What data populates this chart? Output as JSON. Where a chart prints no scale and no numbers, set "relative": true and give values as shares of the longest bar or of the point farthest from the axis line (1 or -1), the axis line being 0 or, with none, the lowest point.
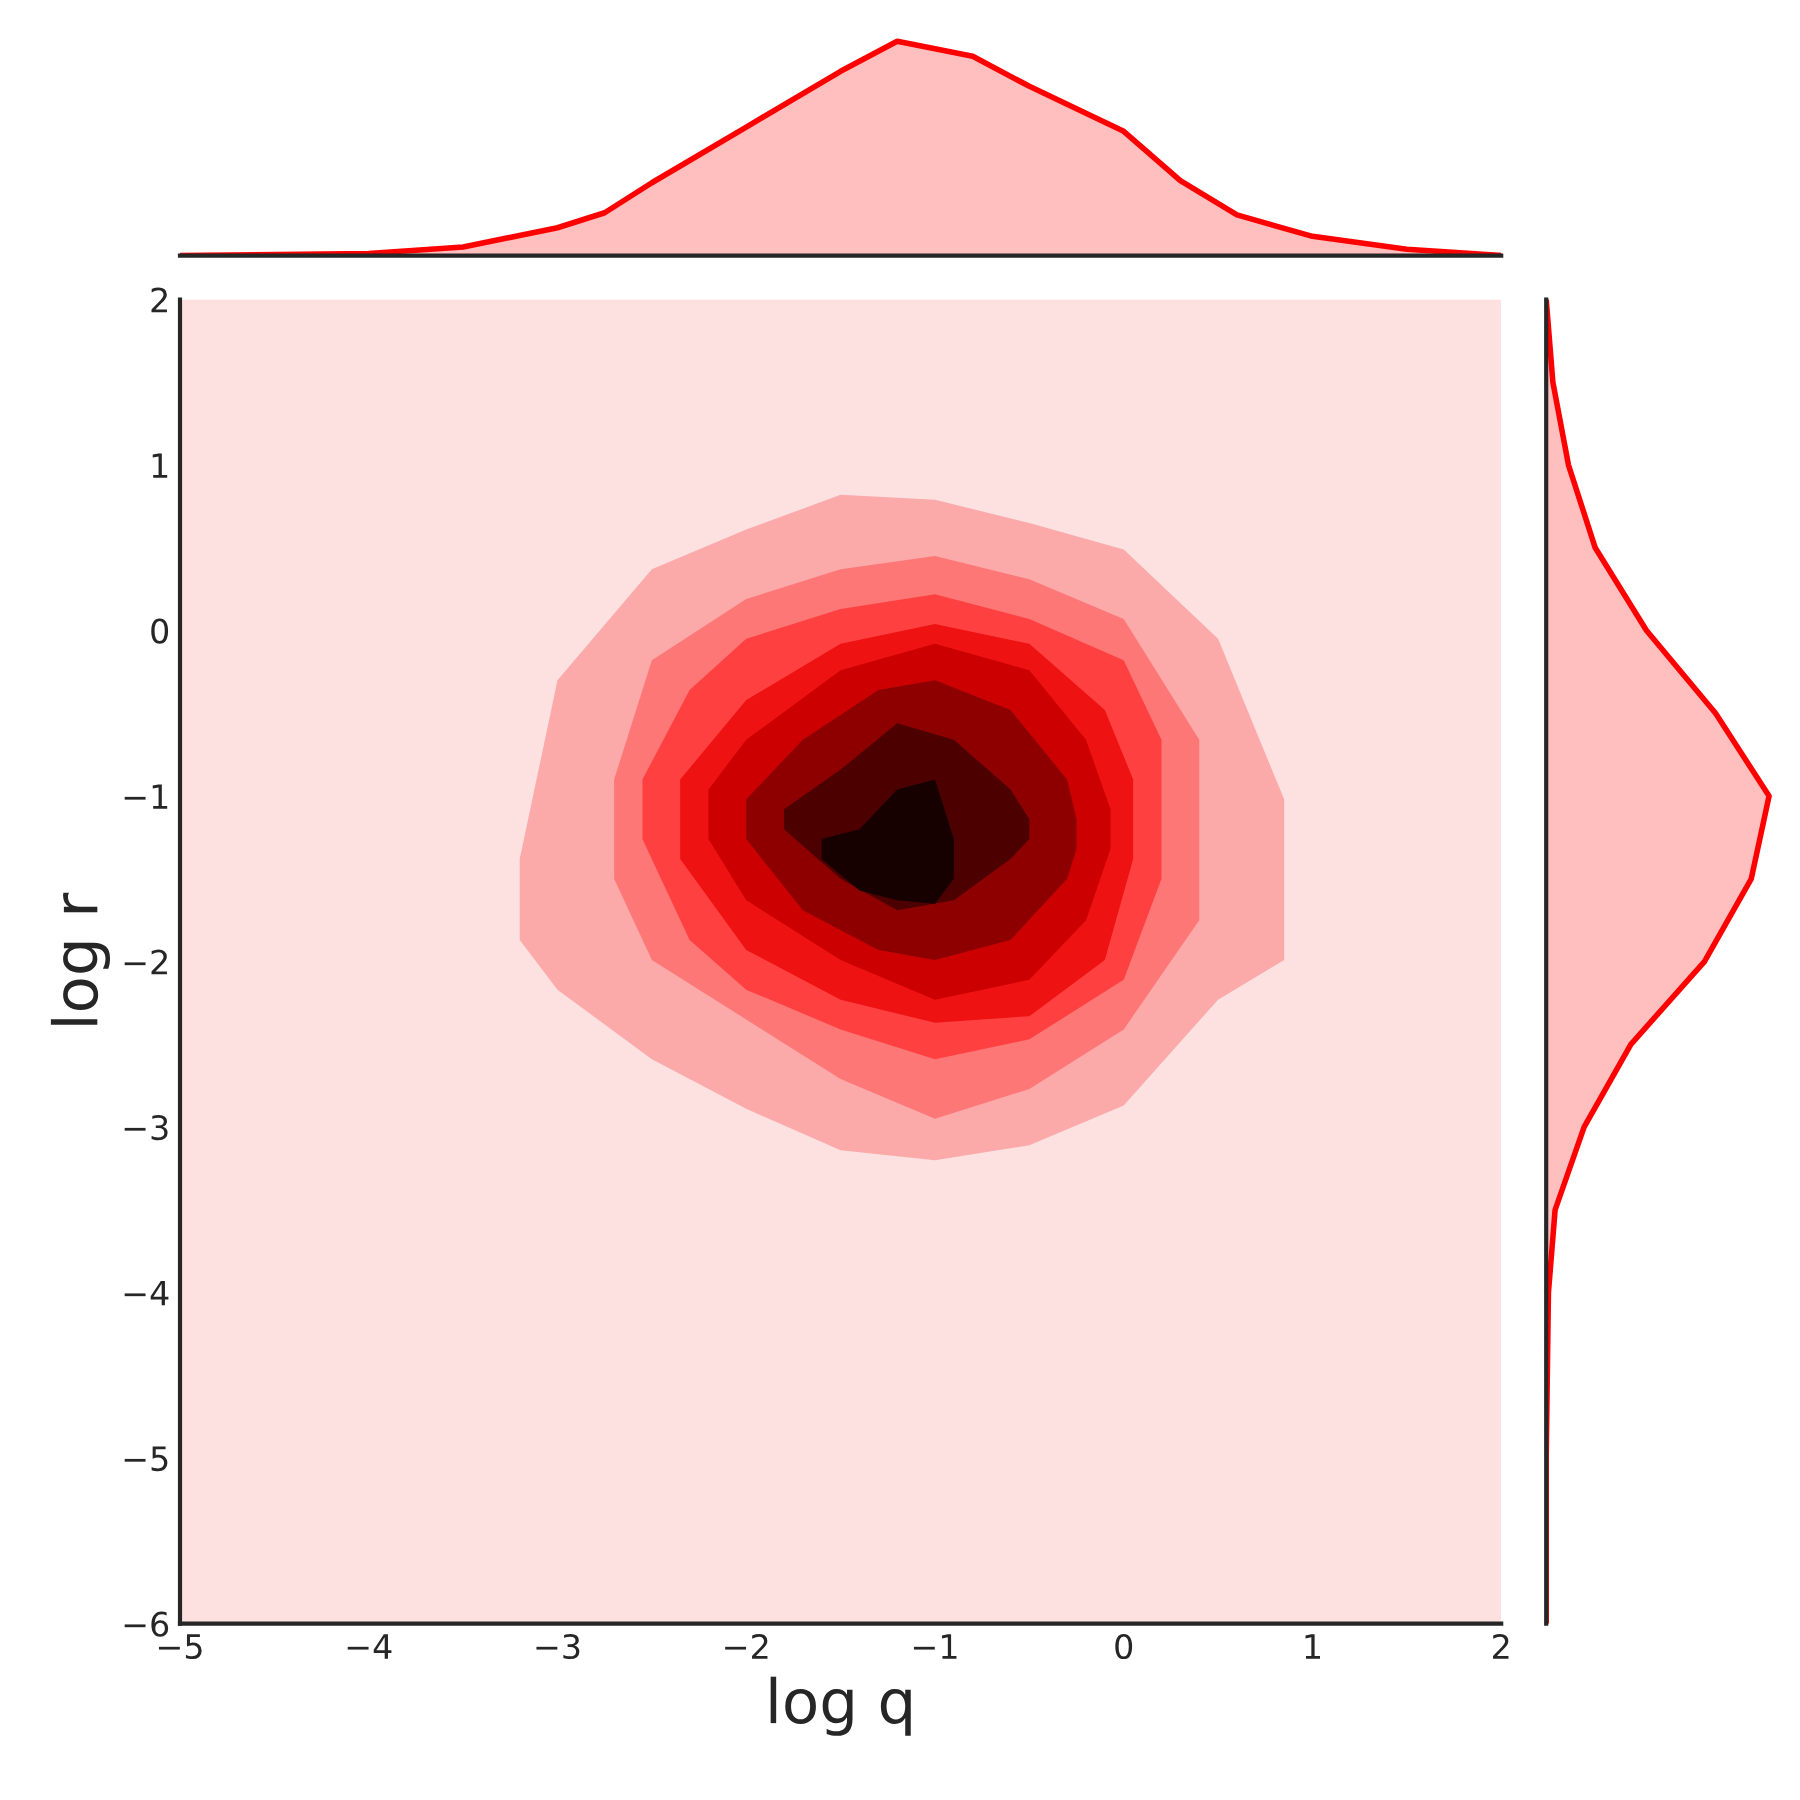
{
  "chart_data": [
    {
      "type": "area",
      "relative": true,
      "x": [
        -5,
        -4,
        -3.5,
        -3,
        -2.75,
        -2.5,
        -2,
        -1.5,
        -1.2,
        -0.8,
        -0.5,
        0,
        0.3,
        0.6,
        1,
        1.5,
        2
      ],
      "xlim": [
        -5,
        2
      ],
      "tick_labels": false,
      "grid": false,
      "series": [
        {
          "color": "#ff0000",
          "values": [
            0,
            0.01,
            0.04,
            0.13,
            0.2,
            0.34,
            0.6,
            0.86,
            1.0,
            0.93,
            0.79,
            0.58,
            0.35,
            0.19,
            0.09,
            0.03,
            0
          ]
        }
      ]
    },
    {
      "type": "area",
      "xlabel": "log q",
      "ylabel": "log r",
      "xlim": [
        -5,
        2
      ],
      "ylim": [
        -6,
        2
      ],
      "grid": false,
      "bands": [
        {
          "axis": "x",
          "from": -5,
          "to": 2,
          "color": "#fde0e0"
        }
      ],
      "xticks": [
        {
          "value": -5,
          "label": "−5"
        },
        {
          "value": -4,
          "label": "−4"
        },
        {
          "value": -3,
          "label": "−3"
        },
        {
          "value": -2,
          "label": "−2"
        },
        {
          "value": -1,
          "label": "−1"
        },
        0,
        1,
        2
      ],
      "yticks": [
        {
          "value": -6,
          "label": "−6"
        },
        {
          "value": -5,
          "label": "−5"
        },
        {
          "value": -4,
          "label": "−4"
        },
        {
          "value": -3,
          "label": "−3"
        },
        {
          "value": -2,
          "label": "−2"
        },
        {
          "value": -1,
          "label": "−1"
        },
        0,
        1,
        2
      ],
      "series": [
        {
          "color": "#fca9a9",
          "x": [
            -3.2,
            -3.0,
            -2.5,
            -2.0,
            -1.5,
            -1.0,
            -0.5,
            0,
            0.5,
            0.85,
            0.85,
            0.5,
            0,
            -0.5,
            -1.0,
            -1.5,
            -2.0,
            -2.5,
            -3.0,
            -3.2
          ],
          "values": [
            -1.38,
            -0.3,
            0.37,
            0.61,
            0.82,
            0.79,
            0.65,
            0.49,
            -0.05,
            -1.02,
            -1.99,
            -2.23,
            -2.87,
            -3.11,
            -3.2,
            -3.14,
            -2.89,
            -2.59,
            -2.17,
            -1.87
          ]
        },
        {
          "color": "#fd7777",
          "x": [
            -2.7,
            -2.5,
            -2.0,
            -1.5,
            -1.0,
            -0.5,
            0,
            0.4,
            0.4,
            0,
            -0.5,
            -1.0,
            -1.5,
            -2.0,
            -2.5,
            -2.7
          ],
          "values": [
            -0.9,
            -0.18,
            0.19,
            0.37,
            0.45,
            0.31,
            0.07,
            -0.66,
            -1.75,
            -2.41,
            -2.77,
            -2.95,
            -2.71,
            -2.35,
            -1.99,
            -1.5
          ]
        },
        {
          "color": "#ff4040",
          "x": [
            -2.55,
            -2.3,
            -2.0,
            -1.5,
            -1.0,
            -0.5,
            0,
            0.2,
            0.2,
            0,
            -0.5,
            -1.0,
            -1.5,
            -2.0,
            -2.3,
            -2.55
          ],
          "values": [
            -0.9,
            -0.36,
            -0.05,
            0.13,
            0.22,
            0.07,
            -0.18,
            -0.66,
            -1.5,
            -2.11,
            -2.47,
            -2.59,
            -2.41,
            -2.17,
            -1.87,
            -1.26
          ]
        },
        {
          "color": "#ef1212",
          "x": [
            -2.35,
            -2.0,
            -1.5,
            -1.0,
            -0.5,
            -0.1,
            0.05,
            0.05,
            -0.1,
            -0.5,
            -1.0,
            -1.5,
            -2.0,
            -2.35
          ],
          "values": [
            -0.9,
            -0.42,
            -0.08,
            0.04,
            -0.08,
            -0.48,
            -0.9,
            -1.38,
            -1.99,
            -2.33,
            -2.37,
            -2.23,
            -1.93,
            -1.38
          ]
        },
        {
          "color": "#cc0000",
          "x": [
            -2.2,
            -2.0,
            -1.5,
            -1.0,
            -0.5,
            -0.2,
            -0.07,
            -0.07,
            -0.2,
            -0.5,
            -1.0,
            -1.5,
            -2.0,
            -2.2
          ],
          "values": [
            -0.96,
            -0.66,
            -0.24,
            -0.08,
            -0.24,
            -0.66,
            -1.08,
            -1.32,
            -1.75,
            -2.11,
            -2.23,
            -1.99,
            -1.63,
            -1.26
          ]
        },
        {
          "color": "#8e0000",
          "x": [
            -2.0,
            -1.7,
            -1.3,
            -1.0,
            -0.6,
            -0.3,
            -0.25,
            -0.25,
            -0.3,
            -0.6,
            -1.0,
            -1.3,
            -1.7,
            -2.0
          ],
          "values": [
            -1.02,
            -0.66,
            -0.36,
            -0.3,
            -0.48,
            -0.9,
            -1.14,
            -1.32,
            -1.5,
            -1.87,
            -1.99,
            -1.93,
            -1.69,
            -1.26
          ]
        },
        {
          "color": "#4c0000",
          "x": [
            -1.8,
            -1.5,
            -1.2,
            -0.9,
            -0.6,
            -0.5,
            -0.5,
            -0.6,
            -0.9,
            -1.2,
            -1.5,
            -1.8
          ],
          "values": [
            -1.08,
            -0.84,
            -0.56,
            -0.66,
            -0.96,
            -1.14,
            -1.26,
            -1.38,
            -1.63,
            -1.69,
            -1.5,
            -1.2
          ]
        },
        {
          "color": "#160000",
          "x": [
            -1.6,
            -1.4,
            -1.2,
            -1.0,
            -0.9,
            -0.9,
            -1.0,
            -1.2,
            -1.4,
            -1.6
          ],
          "values": [
            -1.26,
            -1.2,
            -0.96,
            -0.9,
            -1.26,
            -1.5,
            -1.65,
            -1.63,
            -1.57,
            -1.38
          ]
        }
      ]
    },
    {
      "type": "area",
      "relative": true,
      "orientation": "horizontal",
      "x": [
        2,
        1.5,
        1,
        0.5,
        0,
        -0.5,
        -1,
        -1.5,
        -2,
        -2.5,
        -3,
        -3.5,
        -4,
        -5,
        -6
      ],
      "ylim": [
        -6,
        2
      ],
      "tick_labels": false,
      "grid": false,
      "series": [
        {
          "color": "#ff0000",
          "values": [
            0,
            0.03,
            0.1,
            0.22,
            0.45,
            0.76,
            1.0,
            0.92,
            0.71,
            0.38,
            0.17,
            0.04,
            0.01,
            0,
            0
          ]
        }
      ]
    }
  ]
}
